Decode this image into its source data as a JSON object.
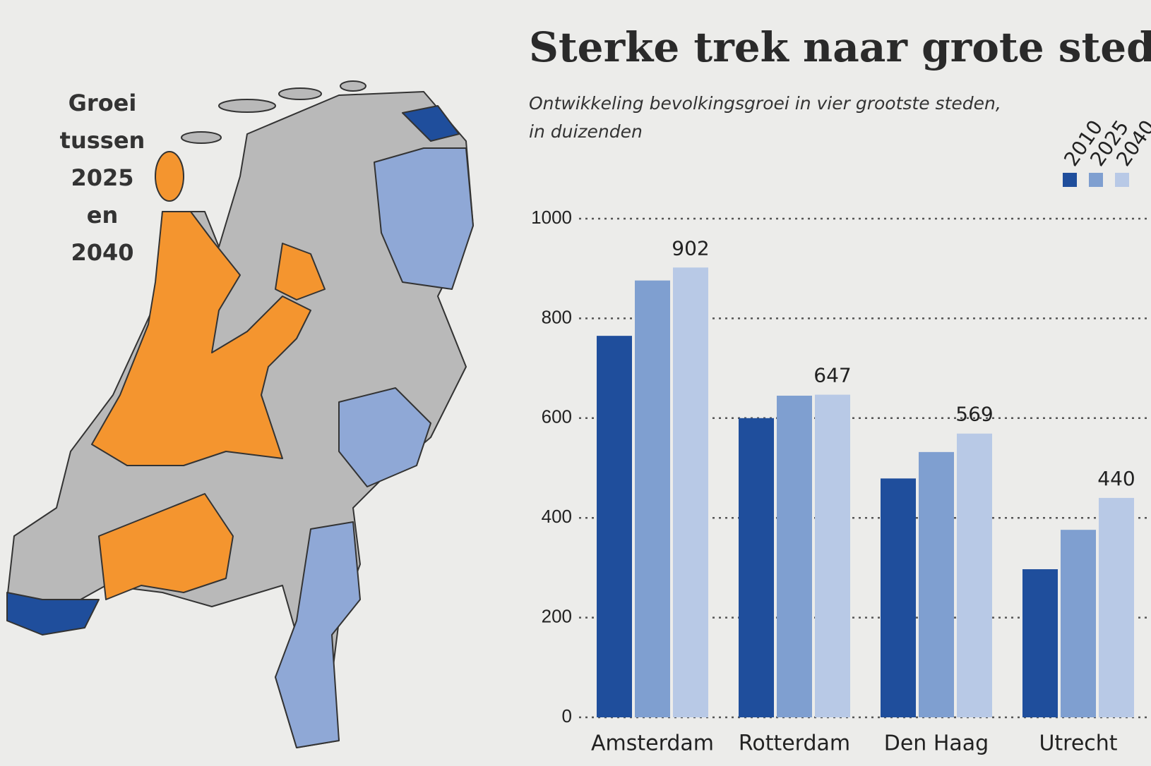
{
  "map": {
    "label_lines": [
      "Groei",
      "tussen",
      "2025",
      "en",
      "2040"
    ]
  },
  "chart_data": {
    "type": "bar",
    "title": "Sterke trek naar grote steden",
    "subtitle": [
      "Ontwikkeling bevolkingsgroei in vier grootste steden,",
      "in duizenden"
    ],
    "categories": [
      "Amsterdam",
      "Rotterdam",
      "Den Haag",
      "Utrecht"
    ],
    "series": [
      {
        "name": "2010",
        "color": "#1f4e9c",
        "values": [
          765,
          600,
          479,
          297
        ]
      },
      {
        "name": "2025",
        "color": "#7f9fd0",
        "values": [
          876,
          645,
          532,
          376
        ]
      },
      {
        "name": "2040",
        "color": "#b8c9e6",
        "values": [
          902,
          647,
          569,
          440
        ],
        "show_value_labels": true
      }
    ],
    "ylim": [
      0,
      1000
    ],
    "yticks": [
      0,
      200,
      400,
      600,
      800,
      1000
    ],
    "grid": true,
    "legend": "top-right"
  }
}
